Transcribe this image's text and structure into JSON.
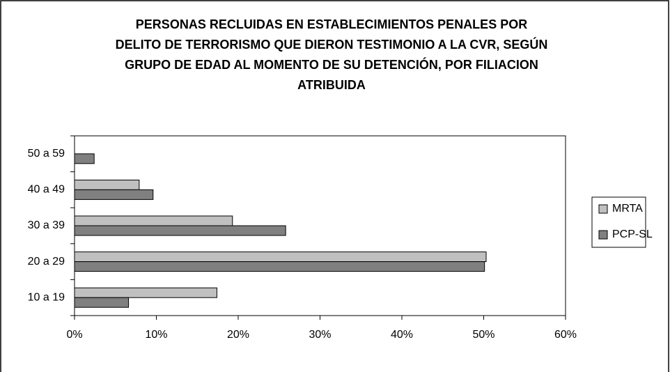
{
  "chart_data": {
    "type": "hbar",
    "title": [
      "PERSONAS RECLUIDAS EN ESTABLECIMIENTOS PENALES POR",
      "DELITO DE TERRORISMO QUE DIERON TESTIMONIO A LA CVR, SEGÚN",
      "GRUPO DE EDAD AL MOMENTO DE SU DETENCIÓN, POR FILIACION",
      "ATRIBUIDA"
    ],
    "categories": [
      "10 a 19",
      "20 a 29",
      "30 a 39",
      "40 a 49",
      "50 a 59"
    ],
    "series": [
      {
        "name": "MRTA",
        "color": "#c0c0c0",
        "values": [
          17.4,
          50.3,
          19.3,
          7.9,
          0
        ]
      },
      {
        "name": "PCP-SL",
        "color": "#808080",
        "values": [
          6.6,
          50.1,
          25.8,
          9.6,
          2.4
        ]
      }
    ],
    "xlim": [
      0,
      60
    ],
    "xticks": [
      {
        "value": 0,
        "label": "0%"
      },
      {
        "value": 10,
        "label": "10%"
      },
      {
        "value": 20,
        "label": "20%"
      },
      {
        "value": 30,
        "label": "30%"
      },
      {
        "value": 40,
        "label": "40%"
      },
      {
        "value": 50,
        "label": "50%"
      },
      {
        "value": 60,
        "label": "60%"
      }
    ],
    "legend": "right"
  }
}
